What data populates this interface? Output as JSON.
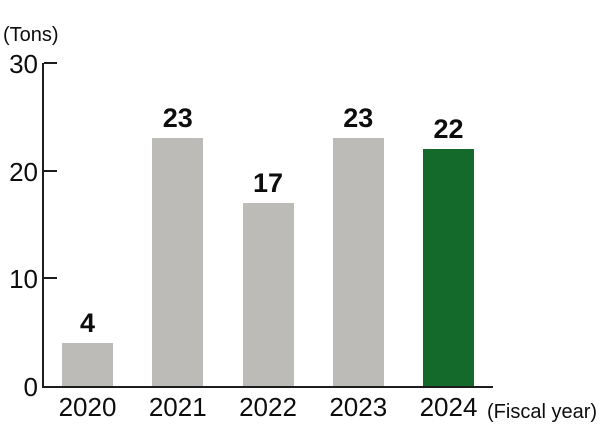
{
  "chart_data": {
    "type": "bar",
    "title": "",
    "ylabel": "(Tons)",
    "xlabel": "(Fiscal year)",
    "categories": [
      "2020",
      "2021",
      "2022",
      "2023",
      "2024"
    ],
    "values": [
      4,
      23,
      17,
      23,
      22
    ],
    "value_labels": [
      "4",
      "23",
      "17",
      "23",
      "22"
    ],
    "ylim": [
      0,
      30
    ],
    "yticks": [
      0,
      10,
      20,
      30
    ],
    "grid": false,
    "legend": false,
    "colors": {
      "bar_default": "#bdbbb7",
      "bar_highlight": "#136a2b",
      "highlight_category": "2024",
      "axis": "#1d1d1d",
      "text": "#0d0d0d"
    }
  }
}
